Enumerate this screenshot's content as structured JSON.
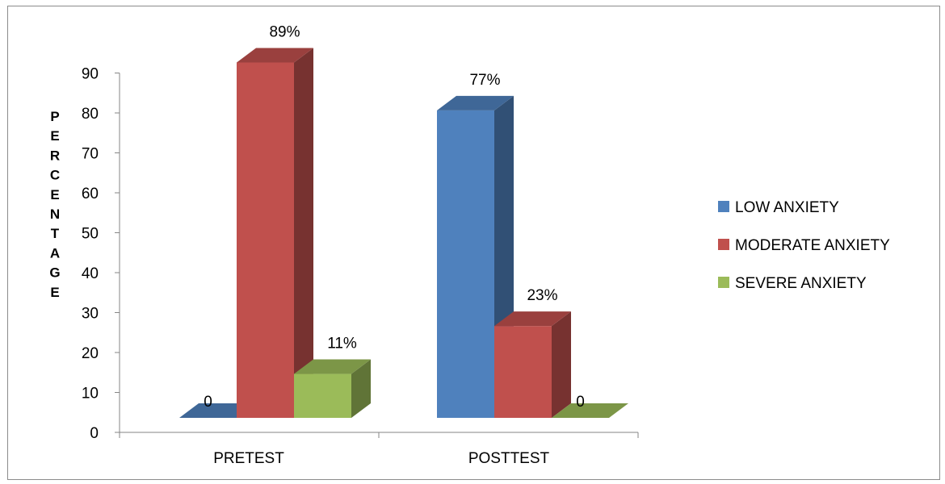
{
  "chart_data": {
    "type": "bar",
    "title": "",
    "xlabel": "",
    "ylabel": "PERCENTAGE",
    "ylim": [
      0,
      90
    ],
    "yticks": [
      0,
      10,
      20,
      30,
      40,
      50,
      60,
      70,
      80,
      90
    ],
    "categories": [
      "PRETEST",
      "POSTTEST"
    ],
    "series": [
      {
        "name": "LOW ANXIETY",
        "values": [
          0,
          77
        ],
        "labels": [
          "0",
          "77%"
        ],
        "color": "#4f81bd"
      },
      {
        "name": "MODERATE ANXIETY",
        "values": [
          89,
          23
        ],
        "labels": [
          "89%",
          "23%"
        ],
        "color": "#c0504d"
      },
      {
        "name": "SEVERE ANXIETY",
        "values": [
          11,
          0
        ],
        "labels": [
          "11%",
          "0"
        ],
        "color": "#9bbb59"
      }
    ],
    "legend_position": "right",
    "grid": false,
    "style": "3d-column"
  }
}
